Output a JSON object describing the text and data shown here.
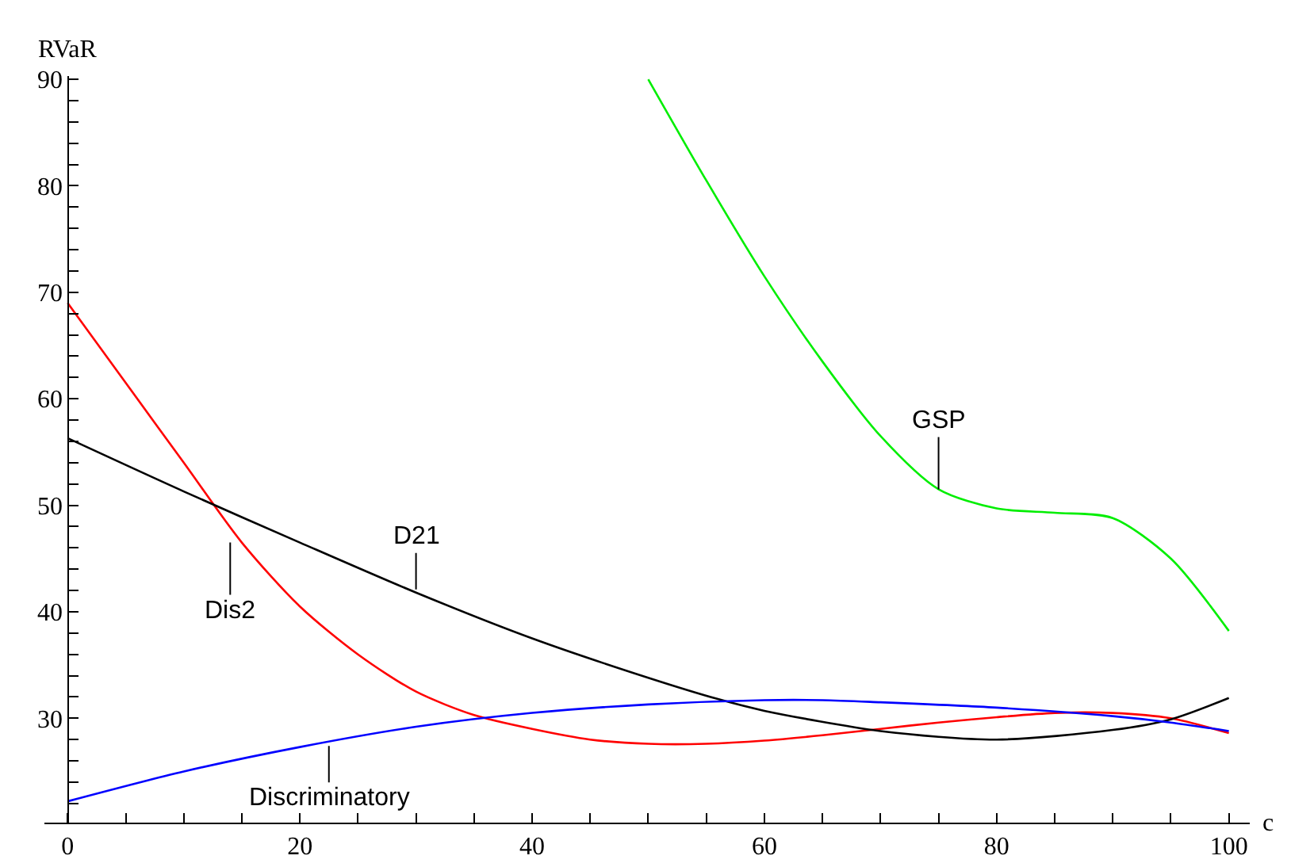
{
  "chart_data": {
    "type": "line",
    "xlabel": "c",
    "ylabel": "RVaR",
    "xlim": [
      -2,
      101.8
    ],
    "ylim": [
      20.2,
      90.3
    ],
    "xticks": [
      0,
      {
        "value": 5,
        "label": null
      },
      {
        "value": 10,
        "label": null
      },
      {
        "value": 15,
        "label": null
      },
      20,
      {
        "value": 25,
        "label": null
      },
      {
        "value": 30,
        "label": null
      },
      {
        "value": 35,
        "label": null
      },
      40,
      {
        "value": 45,
        "label": null
      },
      {
        "value": 50,
        "label": null
      },
      {
        "value": 55,
        "label": null
      },
      60,
      {
        "value": 65,
        "label": null
      },
      {
        "value": 70,
        "label": null
      },
      {
        "value": 75,
        "label": null
      },
      80,
      {
        "value": 85,
        "label": null
      },
      {
        "value": 90,
        "label": null
      },
      {
        "value": 95,
        "label": null
      },
      100
    ],
    "yticks": [
      {
        "value": 22,
        "label": null
      },
      {
        "value": 24,
        "label": null
      },
      {
        "value": 26,
        "label": null
      },
      {
        "value": 28,
        "label": null
      },
      30,
      {
        "value": 32,
        "label": null
      },
      {
        "value": 34,
        "label": null
      },
      {
        "value": 36,
        "label": null
      },
      {
        "value": 38,
        "label": null
      },
      40,
      {
        "value": 42,
        "label": null
      },
      {
        "value": 44,
        "label": null
      },
      {
        "value": 46,
        "label": null
      },
      {
        "value": 48,
        "label": null
      },
      50,
      {
        "value": 52,
        "label": null
      },
      {
        "value": 54,
        "label": null
      },
      {
        "value": 56,
        "label": null
      },
      {
        "value": 58,
        "label": null
      },
      60,
      {
        "value": 62,
        "label": null
      },
      {
        "value": 64,
        "label": null
      },
      {
        "value": 66,
        "label": null
      },
      {
        "value": 68,
        "label": null
      },
      70,
      {
        "value": 72,
        "label": null
      },
      {
        "value": 74,
        "label": null
      },
      {
        "value": 76,
        "label": null
      },
      {
        "value": 78,
        "label": null
      },
      80,
      {
        "value": 82,
        "label": null
      },
      {
        "value": 84,
        "label": null
      },
      {
        "value": 86,
        "label": null
      },
      {
        "value": 88,
        "label": null
      },
      90
    ],
    "grid": false,
    "marker": "none",
    "line_style": "solid",
    "series": [
      {
        "color": "#ff0000",
        "x": [
          0,
          5,
          10,
          15,
          20,
          25,
          30,
          35,
          40,
          45,
          50,
          55,
          60,
          65,
          70,
          75,
          80,
          85,
          90,
          95,
          100
        ],
        "values": [
          69,
          61.5,
          54,
          46.5,
          40.5,
          36,
          32.5,
          30.3,
          29,
          28,
          27.6,
          27.6,
          27.9,
          28.4,
          29,
          29.6,
          30.1,
          30.5,
          30.5,
          30,
          28.6
        ]
      },
      {
        "color": "#000000",
        "x": [
          0,
          10,
          20,
          30,
          40,
          50,
          56,
          60,
          70,
          80,
          90,
          95,
          100
        ],
        "values": [
          56.3,
          51.3,
          46.5,
          41.8,
          37.5,
          33.8,
          31.8,
          30.7,
          28.8,
          28,
          28.9,
          29.9,
          31.9
        ]
      },
      {
        "color": "#0000ff",
        "x": [
          0,
          10,
          20,
          30,
          40,
          50,
          60,
          65,
          70,
          80,
          90,
          95,
          100
        ],
        "values": [
          22.2,
          25,
          27.3,
          29.2,
          30.5,
          31.3,
          31.7,
          31.7,
          31.5,
          31,
          30.2,
          29.6,
          28.8
        ]
      },
      {
        "color": "#00ee00",
        "x": [
          50,
          55,
          60,
          65,
          70,
          75,
          80,
          85,
          90,
          95,
          100
        ],
        "values": [
          90,
          80.5,
          71.5,
          63.5,
          56.5,
          51.5,
          49.7,
          49.3,
          48.8,
          45,
          38.2
        ]
      }
    ],
    "annotations": [
      {
        "text": "GSP",
        "x": 75,
        "y": 51.2
      },
      {
        "text": "D21",
        "x": 30,
        "y": 41.8
      },
      {
        "text": "Dis2",
        "x": 14,
        "y": 46.8
      },
      {
        "text": "Discriminatory",
        "x": 22.5,
        "y": 27.7
      }
    ]
  }
}
